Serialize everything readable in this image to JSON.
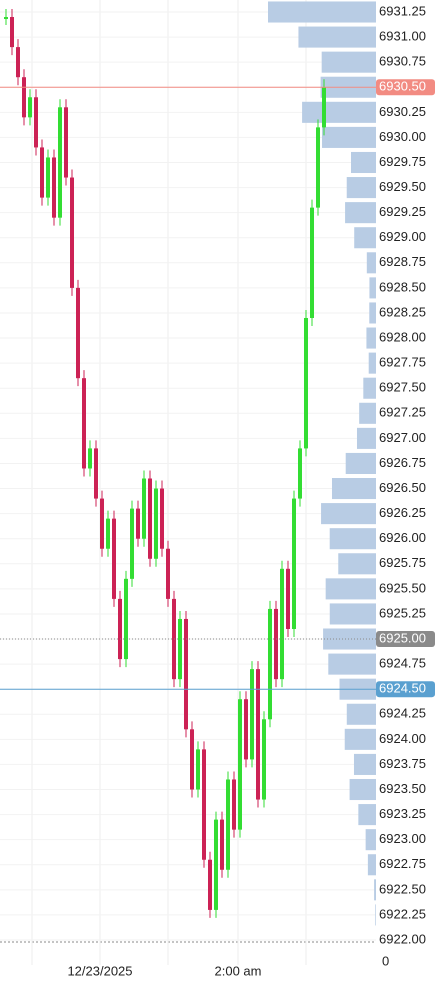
{
  "chart_data": {
    "type": "candlestick",
    "closes": [
      6931.2,
      6930.9,
      6930.6,
      6930.2,
      6930.4,
      6929.9,
      6929.4,
      6929.8,
      6929.2,
      6930.3,
      6929.6,
      6928.5,
      6927.6,
      6926.7,
      6926.9,
      6926.4,
      6925.9,
      6926.2,
      6925.4,
      6924.8,
      6925.6,
      6926.3,
      6926.0,
      6926.6,
      6925.8,
      6926.5,
      6925.9,
      6925.4,
      6924.6,
      6925.2,
      6924.1,
      6923.5,
      6923.9,
      6922.8,
      6922.3,
      6923.2,
      6922.7,
      6923.6,
      6923.1,
      6924.4,
      6923.8,
      6924.7,
      6923.4,
      6924.2,
      6925.3,
      6924.6,
      6925.7,
      6925.1,
      6926.4,
      6926.9,
      6928.2,
      6929.3,
      6930.1,
      6930.5
    ],
    "up_color": "#33dd33",
    "down_color": "#cc2255",
    "ylim": [
      6922.0,
      6931.25
    ],
    "yticks": [
      {
        "value": 6931.25,
        "label": "6931.25"
      },
      {
        "value": 6931.0,
        "label": "6931.00"
      },
      {
        "value": 6930.75,
        "label": "6930.75"
      },
      {
        "value": 6930.5,
        "label": "6930.50"
      },
      {
        "value": 6930.25,
        "label": "6930.25"
      },
      {
        "value": 6930.0,
        "label": "6930.00"
      },
      {
        "value": 6929.75,
        "label": "6929.75"
      },
      {
        "value": 6929.5,
        "label": "6929.50"
      },
      {
        "value": 6929.25,
        "label": "6929.25"
      },
      {
        "value": 6929.0,
        "label": "6929.00"
      },
      {
        "value": 6928.75,
        "label": "6928.75"
      },
      {
        "value": 6928.5,
        "label": "6928.50"
      },
      {
        "value": 6928.25,
        "label": "6928.25"
      },
      {
        "value": 6928.0,
        "label": "6928.00"
      },
      {
        "value": 6927.75,
        "label": "6927.75"
      },
      {
        "value": 6927.5,
        "label": "6927.50"
      },
      {
        "value": 6927.25,
        "label": "6927.25"
      },
      {
        "value": 6927.0,
        "label": "6927.00"
      },
      {
        "value": 6926.75,
        "label": "6926.75"
      },
      {
        "value": 6926.5,
        "label": "6926.50"
      },
      {
        "value": 6926.25,
        "label": "6926.25"
      },
      {
        "value": 6926.0,
        "label": "6926.00"
      },
      {
        "value": 6925.75,
        "label": "6925.75"
      },
      {
        "value": 6925.5,
        "label": "6925.50"
      },
      {
        "value": 6925.25,
        "label": "6925.25"
      },
      {
        "value": 6925.0,
        "label": "6925.00"
      },
      {
        "value": 6924.75,
        "label": "6924.75"
      },
      {
        "value": 6924.5,
        "label": "6924.50"
      },
      {
        "value": 6924.25,
        "label": "6924.25"
      },
      {
        "value": 6924.0,
        "label": "6924.00"
      },
      {
        "value": 6923.75,
        "label": "6923.75"
      },
      {
        "value": 6923.5,
        "label": "6923.50"
      },
      {
        "value": 6923.25,
        "label": "6923.25"
      },
      {
        "value": 6923.0,
        "label": "6923.00"
      },
      {
        "value": 6922.75,
        "label": "6922.75"
      },
      {
        "value": 6922.5,
        "label": "6922.50"
      },
      {
        "value": 6922.25,
        "label": "6922.25"
      },
      {
        "value": 6922.0,
        "label": "6922.00"
      }
    ],
    "profile": {
      "color": "#b8cce4",
      "values": [
        2221,
        1595,
        1117,
        1139,
        1520,
        1110,
        514,
        602,
        636,
        448,
        189,
        135,
        138,
        197,
        150,
        261,
        346,
        391,
        623,
        905,
        1130,
        952,
        776,
        1035,
        951,
        1088,
        981,
        750,
        601,
        643,
        453,
        543,
        363,
        213,
        167,
        39,
        14
      ]
    },
    "markers": [
      {
        "value": 6930.5,
        "label": "6930.50",
        "color": "#f28b82",
        "dotted": false
      },
      {
        "value": 6925.0,
        "label": "6925.00",
        "color": "#8a8a8a",
        "dotted": true
      },
      {
        "value": 6924.5,
        "label": "6924.50",
        "color": "#5aa0d0",
        "dotted": false
      }
    ],
    "x_labels": [
      "12/23/2025",
      "2:00 am"
    ],
    "volume_axis_label": "0"
  }
}
